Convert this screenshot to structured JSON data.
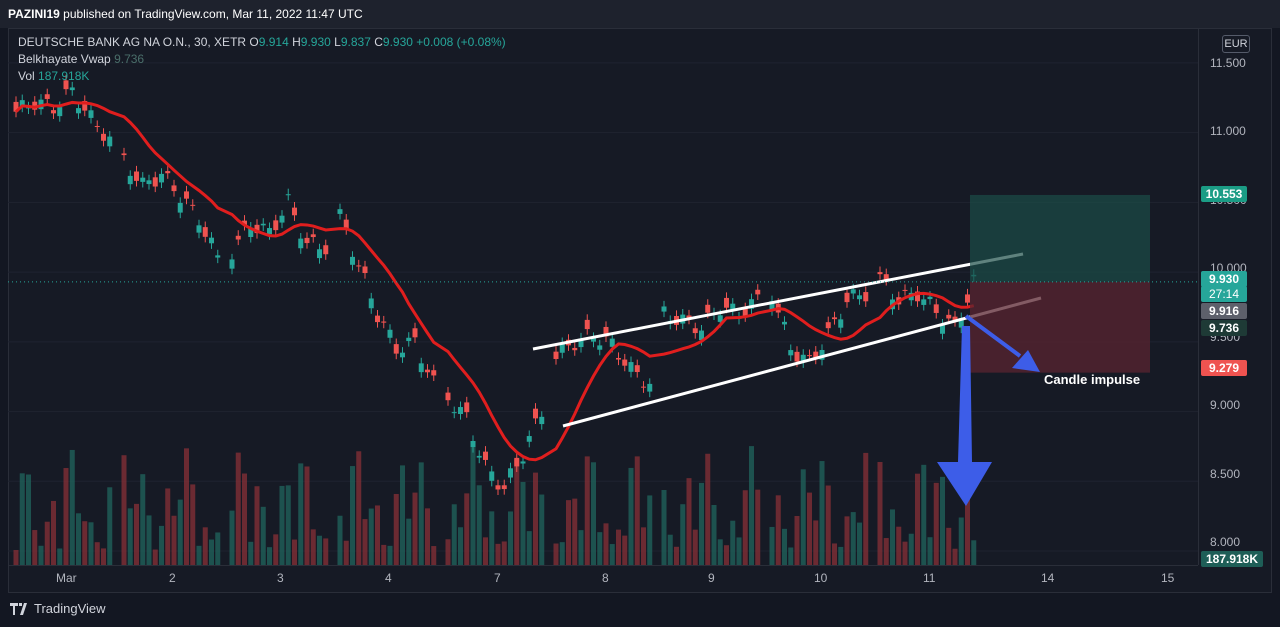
{
  "header": {
    "author": "PAZINI19",
    "published_text": "published on TradingView.com, Mar 11, 2022 11:47 UTC"
  },
  "legend": {
    "symbol": "DEUTSCHE BANK AG NA O.N., 30, XETR",
    "ohlc": {
      "o_label": "O",
      "o_value": "9.914",
      "h_label": "H",
      "h_value": "9.930",
      "l_label": "L",
      "l_value": "9.837",
      "c_label": "C",
      "c_value": "9.930",
      "change": "+0.008 (+0.08%)"
    },
    "indicator_name": "Belkhayate Vwap",
    "indicator_value": "9.736",
    "volume_label": "Vol",
    "volume_value": "187.918K"
  },
  "currency": "EUR",
  "price_axis": {
    "ticks": [
      "11.500",
      "11.000",
      "10.500",
      "10.000",
      "9.500",
      "9.000",
      "8.500",
      "8.000"
    ]
  },
  "time_axis": {
    "ticks": [
      "Mar",
      "2",
      "3",
      "4",
      "7",
      "8",
      "9",
      "10",
      "11",
      "14",
      "15"
    ]
  },
  "price_tags": {
    "target": "10.553",
    "last": "9.930",
    "countdown": "27:14",
    "entry": "9.916",
    "vwap": "9.736",
    "stop": "9.279",
    "volume": "187.918K"
  },
  "annotation": "Candle impulse",
  "footer": {
    "logo_text": "TradingView"
  },
  "colors": {
    "bull": "#26a69a",
    "bear": "#ef5350",
    "vwap_line": "#e01e1e",
    "target_zone": "#1b4d47",
    "stop_zone": "#5a2430",
    "arrow": "#3d5de8"
  },
  "chart_data": {
    "type": "candlestick",
    "title": "DEUTSCHE BANK AG NA O.N., 30, XETR",
    "ylim": [
      7.9,
      11.75
    ],
    "x_sessions": [
      "Mar",
      "2",
      "3",
      "4",
      "7",
      "8",
      "9",
      "10",
      "11"
    ],
    "series_close_path": [
      {
        "session": "Mar",
        "values": [
          11.15,
          11.22,
          11.18,
          11.3,
          11.1,
          10.95
        ]
      },
      {
        "session": "2",
        "values": [
          10.8,
          10.62,
          10.7,
          10.55,
          10.38,
          10.1
        ]
      },
      {
        "session": "3",
        "values": [
          10.15,
          10.35,
          10.28,
          10.5,
          10.2,
          10.18
        ]
      },
      {
        "session": "4",
        "values": [
          10.4,
          10.05,
          9.7,
          9.45,
          9.5,
          9.2
        ]
      },
      {
        "session": "7",
        "values": [
          9.1,
          8.95,
          8.6,
          8.45,
          8.7,
          9.0
        ]
      },
      {
        "session": "8",
        "values": [
          9.4,
          9.5,
          9.55,
          9.48,
          9.3,
          9.2
        ]
      },
      {
        "session": "9",
        "values": [
          9.7,
          9.65,
          9.6,
          9.75,
          9.7,
          9.8
        ]
      },
      {
        "session": "10",
        "values": [
          9.85,
          9.45,
          9.35,
          9.55,
          9.8,
          9.85
        ]
      },
      {
        "session": "11",
        "values": [
          9.95,
          9.8,
          9.85,
          9.72,
          9.6,
          9.93
        ]
      }
    ]
  }
}
